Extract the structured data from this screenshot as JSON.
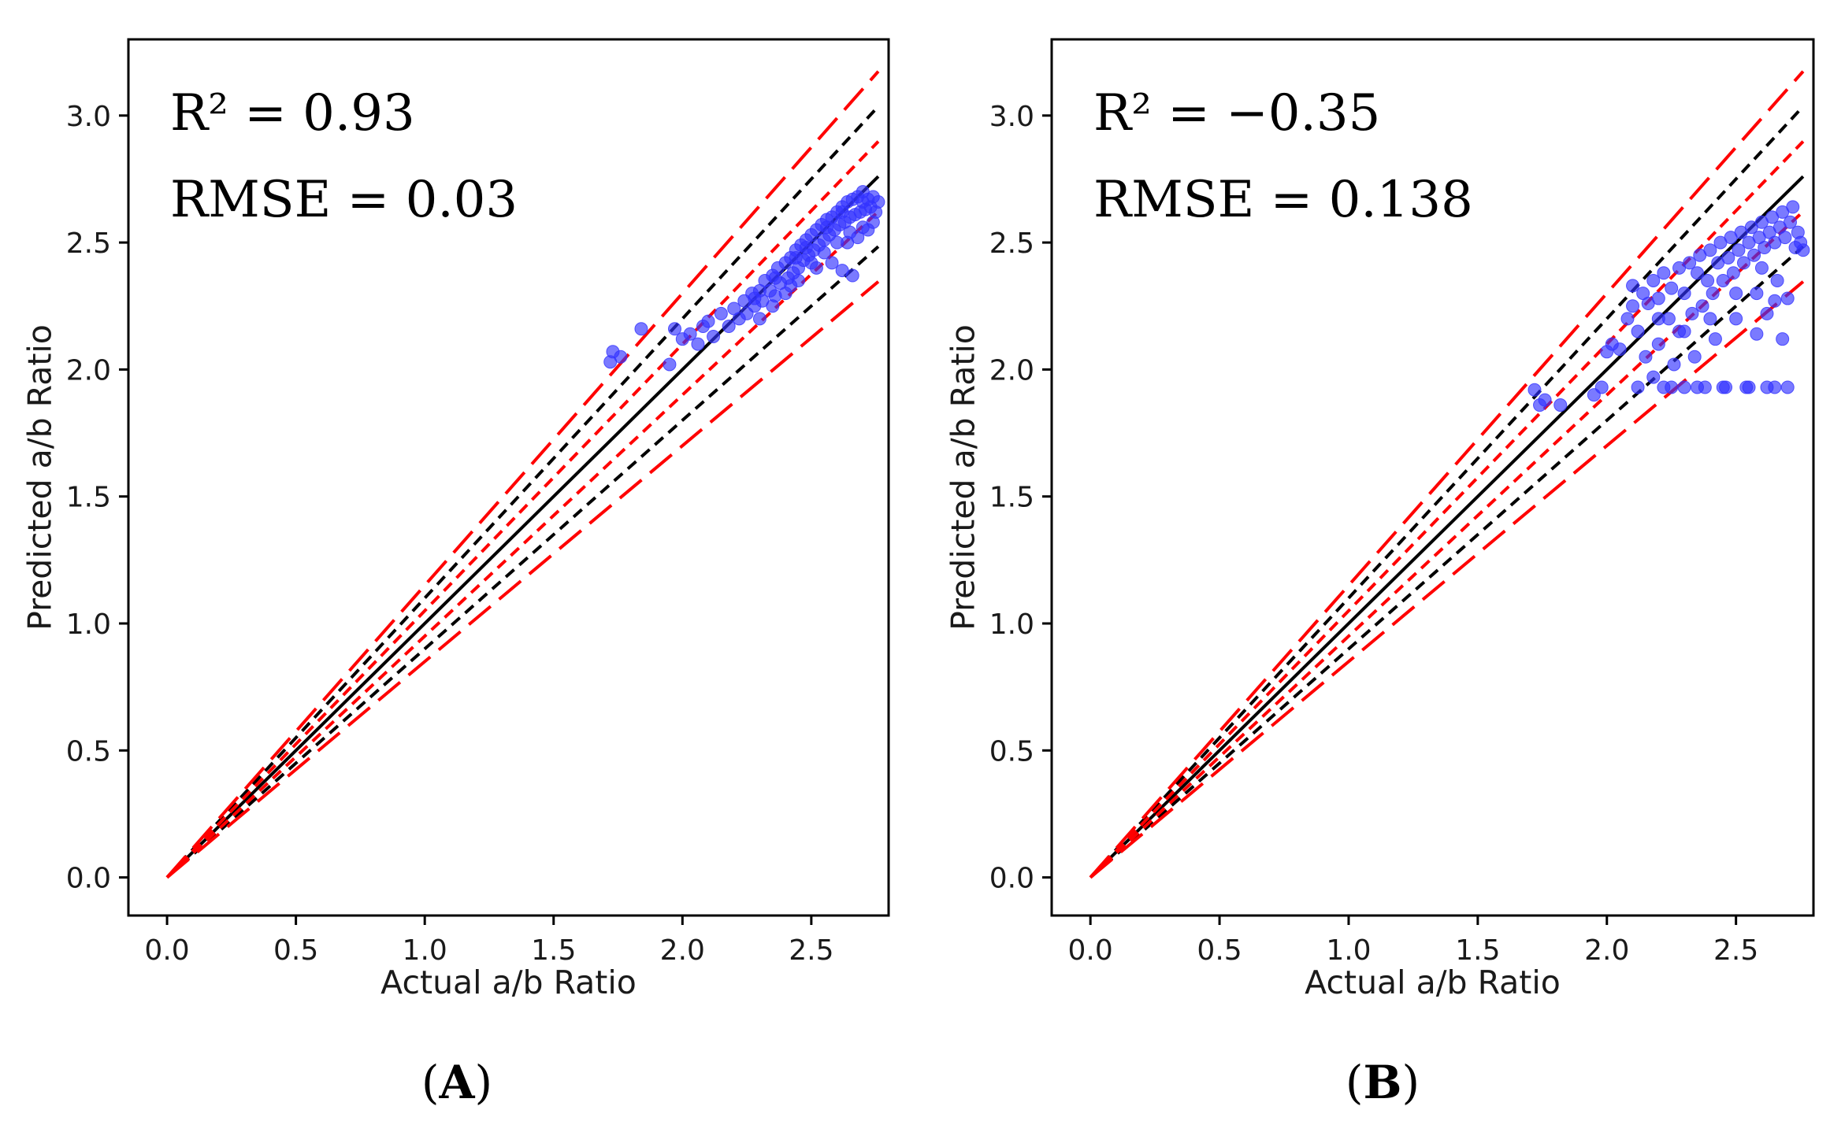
{
  "chart_data": [
    {
      "type": "scatter",
      "panel_label": {
        "open": "(",
        "letter": "A",
        "close": ")"
      },
      "xlabel": "Actual a/b Ratio",
      "ylabel": "Predicted a/b Ratio",
      "xlim": [
        -0.15,
        2.8
      ],
      "ylim": [
        -0.15,
        3.3
      ],
      "xticks": [
        "0.0",
        "0.5",
        "1.0",
        "1.5",
        "2.0",
        "2.5"
      ],
      "yticks": [
        "0.0",
        "0.5",
        "1.0",
        "1.5",
        "2.0",
        "2.5",
        "3.0"
      ],
      "r2_label": "R² = 0.93",
      "rmse_label": "RMSE = 0.03",
      "reference_lines": [
        {
          "name": "identity",
          "slope": 1.0,
          "color": "#000000",
          "style": "solid"
        },
        {
          "name": "upper-black-dashed",
          "slope": 1.1,
          "color": "#000000",
          "style": "short-dash"
        },
        {
          "name": "lower-black-dashed",
          "slope": 0.9,
          "color": "#000000",
          "style": "short-dash"
        },
        {
          "name": "upper-red-short",
          "slope": 1.05,
          "color": "#ff0000",
          "style": "short-dash"
        },
        {
          "name": "lower-red-short",
          "slope": 0.95,
          "color": "#ff0000",
          "style": "short-dash"
        },
        {
          "name": "upper-red-long",
          "slope": 1.15,
          "color": "#ff0000",
          "style": "long-dash"
        },
        {
          "name": "lower-red-long",
          "slope": 0.85,
          "color": "#ff0000",
          "style": "long-dash"
        }
      ],
      "reference_x_max": 2.76,
      "series": [
        {
          "name": "predictions",
          "color": "#3333ff",
          "points": [
            [
              1.72,
              2.03
            ],
            [
              1.73,
              2.07
            ],
            [
              1.76,
              2.05
            ],
            [
              1.84,
              2.16
            ],
            [
              1.95,
              2.02
            ],
            [
              1.97,
              2.16
            ],
            [
              2.0,
              2.12
            ],
            [
              2.03,
              2.14
            ],
            [
              2.06,
              2.1
            ],
            [
              2.08,
              2.17
            ],
            [
              2.1,
              2.19
            ],
            [
              2.12,
              2.13
            ],
            [
              2.15,
              2.22
            ],
            [
              2.18,
              2.17
            ],
            [
              2.2,
              2.24
            ],
            [
              2.22,
              2.2
            ],
            [
              2.24,
              2.27
            ],
            [
              2.25,
              2.22
            ],
            [
              2.27,
              2.3
            ],
            [
              2.28,
              2.25
            ],
            [
              2.3,
              2.31
            ],
            [
              2.31,
              2.27
            ],
            [
              2.32,
              2.35
            ],
            [
              2.34,
              2.31
            ],
            [
              2.35,
              2.37
            ],
            [
              2.36,
              2.29
            ],
            [
              2.37,
              2.4
            ],
            [
              2.38,
              2.34
            ],
            [
              2.4,
              2.42
            ],
            [
              2.41,
              2.36
            ],
            [
              2.42,
              2.44
            ],
            [
              2.43,
              2.38
            ],
            [
              2.44,
              2.47
            ],
            [
              2.45,
              2.4
            ],
            [
              2.46,
              2.49
            ],
            [
              2.47,
              2.43
            ],
            [
              2.48,
              2.51
            ],
            [
              2.49,
              2.45
            ],
            [
              2.5,
              2.53
            ],
            [
              2.51,
              2.47
            ],
            [
              2.52,
              2.55
            ],
            [
              2.53,
              2.49
            ],
            [
              2.54,
              2.57
            ],
            [
              2.55,
              2.51
            ],
            [
              2.56,
              2.59
            ],
            [
              2.57,
              2.53
            ],
            [
              2.58,
              2.6
            ],
            [
              2.59,
              2.55
            ],
            [
              2.6,
              2.62
            ],
            [
              2.61,
              2.57
            ],
            [
              2.62,
              2.64
            ],
            [
              2.63,
              2.58
            ],
            [
              2.64,
              2.66
            ],
            [
              2.65,
              2.6
            ],
            [
              2.66,
              2.67
            ],
            [
              2.67,
              2.61
            ],
            [
              2.68,
              2.68
            ],
            [
              2.69,
              2.62
            ],
            [
              2.7,
              2.66
            ],
            [
              2.71,
              2.63
            ],
            [
              2.72,
              2.67
            ],
            [
              2.73,
              2.64
            ],
            [
              2.74,
              2.68
            ],
            [
              2.75,
              2.62
            ],
            [
              2.76,
              2.66
            ],
            [
              2.6,
              2.5
            ],
            [
              2.55,
              2.46
            ],
            [
              2.5,
              2.42
            ],
            [
              2.45,
              2.35
            ],
            [
              2.65,
              2.54
            ],
            [
              2.7,
              2.56
            ],
            [
              2.62,
              2.39
            ],
            [
              2.66,
              2.37
            ],
            [
              2.58,
              2.42
            ],
            [
              2.72,
              2.55
            ],
            [
              2.35,
              2.25
            ],
            [
              2.4,
              2.3
            ],
            [
              2.3,
              2.2
            ],
            [
              2.52,
              2.4
            ],
            [
              2.68,
              2.52
            ],
            [
              2.44,
              2.44
            ],
            [
              2.48,
              2.48
            ],
            [
              2.56,
              2.56
            ],
            [
              2.36,
              2.36
            ],
            [
              2.28,
              2.28
            ],
            [
              2.62,
              2.62
            ],
            [
              2.7,
              2.7
            ],
            [
              2.74,
              2.58
            ],
            [
              2.64,
              2.5
            ],
            [
              2.42,
              2.33
            ]
          ]
        }
      ]
    },
    {
      "type": "scatter",
      "panel_label": {
        "open": "(",
        "letter": "B",
        "close": ")"
      },
      "xlabel": "Actual a/b Ratio",
      "ylabel": "Predicted a/b Ratio",
      "xlim": [
        -0.15,
        2.8
      ],
      "ylim": [
        -0.15,
        3.3
      ],
      "xticks": [
        "0.0",
        "0.5",
        "1.0",
        "1.5",
        "2.0",
        "2.5"
      ],
      "yticks": [
        "0.0",
        "0.5",
        "1.0",
        "1.5",
        "2.0",
        "2.5",
        "3.0"
      ],
      "r2_label": "R² = −0.35",
      "rmse_label": "RMSE = 0.138",
      "reference_lines": [
        {
          "name": "identity",
          "slope": 1.0,
          "color": "#000000",
          "style": "solid"
        },
        {
          "name": "upper-black-dashed",
          "slope": 1.1,
          "color": "#000000",
          "style": "short-dash"
        },
        {
          "name": "lower-black-dashed",
          "slope": 0.9,
          "color": "#000000",
          "style": "short-dash"
        },
        {
          "name": "upper-red-short",
          "slope": 1.05,
          "color": "#ff0000",
          "style": "short-dash"
        },
        {
          "name": "lower-red-short",
          "slope": 0.95,
          "color": "#ff0000",
          "style": "short-dash"
        },
        {
          "name": "upper-red-long",
          "slope": 1.15,
          "color": "#ff0000",
          "style": "long-dash"
        },
        {
          "name": "lower-red-long",
          "slope": 0.85,
          "color": "#ff0000",
          "style": "long-dash"
        }
      ],
      "reference_x_max": 2.76,
      "series": [
        {
          "name": "predictions",
          "color": "#3333ff",
          "points": [
            [
              1.72,
              1.92
            ],
            [
              1.74,
              1.86
            ],
            [
              1.76,
              1.88
            ],
            [
              1.82,
              1.86
            ],
            [
              1.95,
              1.9
            ],
            [
              1.98,
              1.93
            ],
            [
              2.0,
              2.07
            ],
            [
              2.02,
              2.1
            ],
            [
              2.05,
              2.08
            ],
            [
              2.08,
              2.2
            ],
            [
              2.1,
              2.33
            ],
            [
              2.1,
              2.25
            ],
            [
              2.12,
              2.15
            ],
            [
              2.12,
              1.93
            ],
            [
              2.14,
              2.3
            ],
            [
              2.15,
              2.05
            ],
            [
              2.16,
              2.26
            ],
            [
              2.18,
              2.35
            ],
            [
              2.18,
              1.97
            ],
            [
              2.2,
              2.28
            ],
            [
              2.2,
              2.1
            ],
            [
              2.22,
              2.38
            ],
            [
              2.22,
              1.93
            ],
            [
              2.24,
              2.2
            ],
            [
              2.25,
              2.32
            ],
            [
              2.26,
              2.02
            ],
            [
              2.28,
              2.4
            ],
            [
              2.28,
              2.15
            ],
            [
              2.3,
              2.3
            ],
            [
              2.3,
              1.93
            ],
            [
              2.32,
              2.42
            ],
            [
              2.33,
              2.22
            ],
            [
              2.34,
              2.05
            ],
            [
              2.35,
              2.38
            ],
            [
              2.36,
              2.45
            ],
            [
              2.37,
              2.25
            ],
            [
              2.38,
              1.93
            ],
            [
              2.39,
              2.35
            ],
            [
              2.4,
              2.47
            ],
            [
              2.41,
              2.3
            ],
            [
              2.42,
              2.12
            ],
            [
              2.43,
              2.42
            ],
            [
              2.44,
              2.5
            ],
            [
              2.45,
              2.35
            ],
            [
              2.46,
              1.93
            ],
            [
              2.47,
              2.44
            ],
            [
              2.48,
              2.52
            ],
            [
              2.49,
              2.38
            ],
            [
              2.5,
              2.2
            ],
            [
              2.51,
              2.47
            ],
            [
              2.52,
              2.54
            ],
            [
              2.53,
              2.42
            ],
            [
              2.54,
              1.93
            ],
            [
              2.55,
              2.5
            ],
            [
              2.56,
              2.56
            ],
            [
              2.57,
              2.45
            ],
            [
              2.58,
              2.3
            ],
            [
              2.59,
              2.52
            ],
            [
              2.6,
              2.58
            ],
            [
              2.61,
              2.48
            ],
            [
              2.62,
              1.93
            ],
            [
              2.63,
              2.54
            ],
            [
              2.64,
              2.6
            ],
            [
              2.65,
              2.5
            ],
            [
              2.66,
              2.35
            ],
            [
              2.67,
              2.56
            ],
            [
              2.68,
              2.62
            ],
            [
              2.69,
              2.52
            ],
            [
              2.7,
              1.93
            ],
            [
              2.71,
              2.58
            ],
            [
              2.72,
              2.64
            ],
            [
              2.73,
              2.48
            ],
            [
              2.74,
              2.54
            ],
            [
              2.75,
              2.5
            ],
            [
              2.76,
              2.47
            ],
            [
              2.62,
              2.22
            ],
            [
              2.65,
              2.27
            ],
            [
              2.68,
              2.12
            ],
            [
              2.7,
              2.28
            ],
            [
              2.58,
              2.14
            ],
            [
              2.25,
              1.93
            ],
            [
              2.35,
              1.93
            ],
            [
              2.45,
              1.93
            ],
            [
              2.55,
              1.93
            ],
            [
              2.65,
              1.93
            ],
            [
              2.2,
              2.2
            ],
            [
              2.3,
              2.15
            ],
            [
              2.4,
              2.2
            ],
            [
              2.5,
              2.3
            ],
            [
              2.6,
              2.4
            ]
          ]
        }
      ]
    }
  ]
}
